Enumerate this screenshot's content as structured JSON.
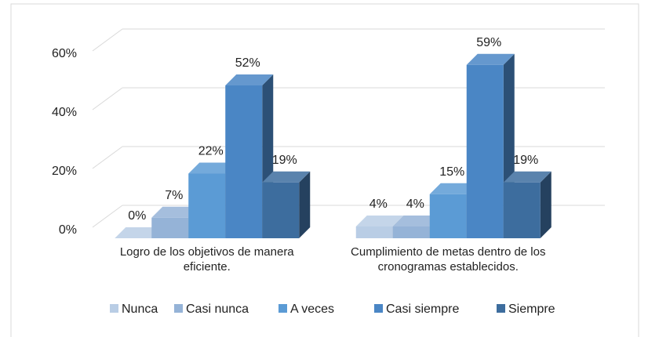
{
  "chart_data": {
    "type": "bar3d",
    "categories": [
      "Logro de los objetivos de manera eficiente.",
      "Cumplimiento de metas dentro de los cronogramas establecidos."
    ],
    "series": [
      {
        "name": "Nunca",
        "color": "#b9cde5",
        "values": [
          0,
          4
        ],
        "value_labels": [
          "0%",
          "4%"
        ]
      },
      {
        "name": "Casi nunca",
        "color": "#95b3d7",
        "values": [
          7,
          4
        ],
        "value_labels": [
          "7%",
          "4%"
        ]
      },
      {
        "name": "A veces",
        "color": "#5b9bd5",
        "values": [
          22,
          15
        ],
        "value_labels": [
          "22%",
          "15%"
        ]
      },
      {
        "name": "Casi siempre",
        "color": "#4a86c5",
        "values": [
          52,
          59
        ],
        "value_labels": [
          "52%",
          "59%"
        ]
      },
      {
        "name": "Siempre",
        "color": "#3d6d9e",
        "values": [
          19,
          19
        ],
        "value_labels": [
          "19%",
          "19%"
        ]
      }
    ],
    "ylim": [
      0,
      60
    ],
    "yticks": [
      {
        "value": 0,
        "label": "0%"
      },
      {
        "value": 20,
        "label": "20%"
      },
      {
        "value": 40,
        "label": "40%"
      },
      {
        "value": 60,
        "label": "60%"
      }
    ],
    "grid": true,
    "legend": "bottom"
  }
}
